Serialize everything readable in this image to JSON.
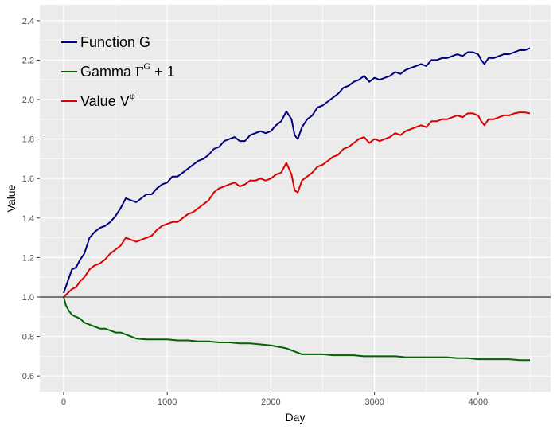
{
  "chart_data": {
    "type": "line",
    "title": "",
    "xlabel": "Day",
    "ylabel": "Value",
    "xlim": [
      -230,
      4700
    ],
    "ylim": [
      0.52,
      2.48
    ],
    "xticks": [
      0,
      1000,
      2000,
      3000,
      4000
    ],
    "xtick_labels": [
      "0",
      "1000",
      "2000",
      "3000",
      "4000"
    ],
    "yticks": [
      0.6,
      0.8,
      1.0,
      1.2,
      1.4,
      1.6,
      1.8,
      2.0,
      2.2,
      2.4
    ],
    "ytick_labels": [
      "0.6",
      "0.8",
      "1.0",
      "1.2",
      "1.4",
      "1.6",
      "1.8",
      "2.0",
      "2.2",
      "2.4"
    ],
    "grid": true,
    "legend_position": "top-left",
    "reference_line": {
      "y": 1.0,
      "color": "#000000"
    },
    "colors": {
      "panel": "#ebebeb",
      "grid": "#ffffff"
    },
    "series": [
      {
        "name": "Function G",
        "legend_main": "Function G",
        "legend_sup": "",
        "legend_tail": "",
        "color": "#000080",
        "x": [
          0,
          40,
          80,
          120,
          160,
          200,
          250,
          300,
          350,
          400,
          450,
          500,
          550,
          600,
          650,
          700,
          750,
          800,
          850,
          900,
          950,
          1000,
          1050,
          1100,
          1150,
          1200,
          1250,
          1300,
          1350,
          1400,
          1450,
          1500,
          1550,
          1600,
          1650,
          1700,
          1750,
          1800,
          1850,
          1900,
          1950,
          2000,
          2050,
          2100,
          2150,
          2200,
          2230,
          2260,
          2300,
          2350,
          2400,
          2450,
          2500,
          2550,
          2600,
          2650,
          2700,
          2750,
          2800,
          2850,
          2900,
          2950,
          3000,
          3050,
          3100,
          3150,
          3200,
          3250,
          3300,
          3350,
          3400,
          3450,
          3500,
          3550,
          3600,
          3650,
          3700,
          3750,
          3800,
          3850,
          3900,
          3950,
          4000,
          4030,
          4060,
          4100,
          4150,
          4200,
          4250,
          4300,
          4350,
          4400,
          4450,
          4500
        ],
        "y": [
          1.02,
          1.08,
          1.14,
          1.15,
          1.19,
          1.22,
          1.3,
          1.33,
          1.35,
          1.36,
          1.38,
          1.41,
          1.45,
          1.5,
          1.49,
          1.48,
          1.5,
          1.52,
          1.52,
          1.55,
          1.57,
          1.58,
          1.61,
          1.61,
          1.63,
          1.65,
          1.67,
          1.69,
          1.7,
          1.72,
          1.75,
          1.76,
          1.79,
          1.8,
          1.81,
          1.79,
          1.79,
          1.82,
          1.83,
          1.84,
          1.83,
          1.84,
          1.87,
          1.89,
          1.94,
          1.9,
          1.82,
          1.8,
          1.86,
          1.9,
          1.92,
          1.96,
          1.97,
          1.99,
          2.01,
          2.03,
          2.06,
          2.07,
          2.09,
          2.1,
          2.12,
          2.09,
          2.11,
          2.1,
          2.11,
          2.12,
          2.14,
          2.13,
          2.15,
          2.16,
          2.17,
          2.18,
          2.17,
          2.2,
          2.2,
          2.21,
          2.21,
          2.22,
          2.23,
          2.22,
          2.24,
          2.24,
          2.23,
          2.2,
          2.18,
          2.21,
          2.21,
          2.22,
          2.23,
          2.23,
          2.24,
          2.25,
          2.25,
          2.26
        ]
      },
      {
        "name": "Gamma",
        "legend_main": "Gamma ",
        "legend_sup": "G",
        "legend_tail": " + 1",
        "color": "#006400",
        "x": [
          0,
          20,
          50,
          80,
          120,
          160,
          200,
          250,
          300,
          350,
          400,
          450,
          500,
          550,
          600,
          650,
          700,
          800,
          900,
          1000,
          1100,
          1200,
          1300,
          1400,
          1500,
          1600,
          1700,
          1800,
          1900,
          2000,
          2050,
          2100,
          2150,
          2200,
          2250,
          2300,
          2400,
          2500,
          2600,
          2700,
          2800,
          2900,
          3000,
          3100,
          3200,
          3300,
          3400,
          3500,
          3600,
          3700,
          3800,
          3900,
          4000,
          4100,
          4200,
          4300,
          4400,
          4500
        ],
        "y": [
          1.0,
          0.96,
          0.93,
          0.91,
          0.9,
          0.89,
          0.87,
          0.86,
          0.85,
          0.84,
          0.84,
          0.83,
          0.82,
          0.82,
          0.81,
          0.8,
          0.79,
          0.785,
          0.785,
          0.785,
          0.78,
          0.78,
          0.775,
          0.775,
          0.77,
          0.77,
          0.765,
          0.765,
          0.76,
          0.755,
          0.75,
          0.745,
          0.74,
          0.73,
          0.72,
          0.71,
          0.71,
          0.71,
          0.705,
          0.705,
          0.705,
          0.7,
          0.7,
          0.7,
          0.7,
          0.695,
          0.695,
          0.695,
          0.695,
          0.695,
          0.69,
          0.69,
          0.685,
          0.685,
          0.685,
          0.685,
          0.68,
          0.68
        ]
      },
      {
        "name": "Value",
        "legend_main": "Value V",
        "legend_sup": "φ",
        "legend_tail": "",
        "color": "#dd0000",
        "x": [
          0,
          40,
          80,
          120,
          160,
          200,
          250,
          300,
          350,
          400,
          450,
          500,
          550,
          600,
          650,
          700,
          750,
          800,
          850,
          900,
          950,
          1000,
          1050,
          1100,
          1150,
          1200,
          1250,
          1300,
          1350,
          1400,
          1450,
          1500,
          1550,
          1600,
          1650,
          1700,
          1750,
          1800,
          1850,
          1900,
          1950,
          2000,
          2050,
          2100,
          2150,
          2200,
          2230,
          2260,
          2300,
          2350,
          2400,
          2450,
          2500,
          2550,
          2600,
          2650,
          2700,
          2750,
          2800,
          2850,
          2900,
          2950,
          3000,
          3050,
          3100,
          3150,
          3200,
          3250,
          3300,
          3350,
          3400,
          3450,
          3500,
          3550,
          3600,
          3650,
          3700,
          3750,
          3800,
          3850,
          3900,
          3950,
          4000,
          4030,
          4060,
          4100,
          4150,
          4200,
          4250,
          4300,
          4350,
          4400,
          4450,
          4500
        ],
        "y": [
          1.0,
          1.02,
          1.04,
          1.05,
          1.08,
          1.1,
          1.14,
          1.16,
          1.17,
          1.19,
          1.22,
          1.24,
          1.26,
          1.3,
          1.29,
          1.28,
          1.29,
          1.3,
          1.31,
          1.34,
          1.36,
          1.37,
          1.38,
          1.38,
          1.4,
          1.42,
          1.43,
          1.45,
          1.47,
          1.49,
          1.53,
          1.55,
          1.56,
          1.57,
          1.58,
          1.56,
          1.57,
          1.59,
          1.59,
          1.6,
          1.59,
          1.6,
          1.62,
          1.63,
          1.68,
          1.62,
          1.54,
          1.53,
          1.59,
          1.61,
          1.63,
          1.66,
          1.67,
          1.69,
          1.71,
          1.72,
          1.75,
          1.76,
          1.78,
          1.8,
          1.81,
          1.78,
          1.8,
          1.79,
          1.8,
          1.81,
          1.83,
          1.82,
          1.84,
          1.85,
          1.86,
          1.87,
          1.86,
          1.89,
          1.89,
          1.9,
          1.9,
          1.91,
          1.92,
          1.91,
          1.93,
          1.93,
          1.92,
          1.89,
          1.87,
          1.9,
          1.9,
          1.91,
          1.92,
          1.92,
          1.93,
          1.935,
          1.935,
          1.93
        ]
      }
    ]
  }
}
